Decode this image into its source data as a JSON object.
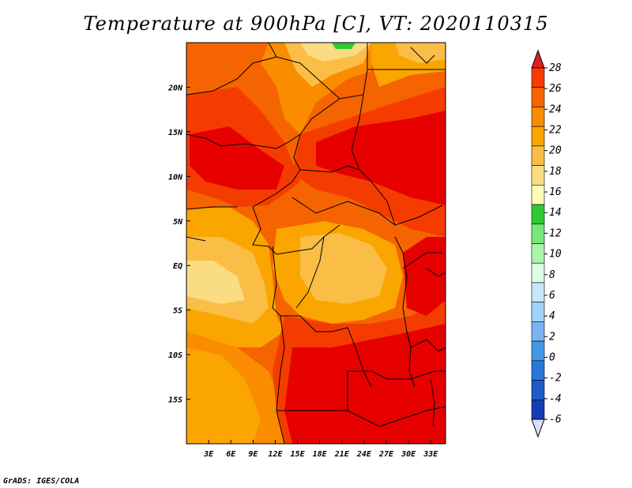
{
  "title": "Temperature at 900hPa [C], VT: 2020110315",
  "credit": "GrADS: IGES/COLA",
  "map": {
    "lon_labels": [
      "3E",
      "6E",
      "9E",
      "12E",
      "15E",
      "18E",
      "21E",
      "24E",
      "27E",
      "30E",
      "33E"
    ],
    "lon_values": [
      3,
      6,
      9,
      12,
      15,
      18,
      21,
      24,
      27,
      30,
      33
    ],
    "lat_labels": [
      "20N",
      "15N",
      "10N",
      "5N",
      "EQ",
      "5S",
      "10S",
      "15S"
    ],
    "lat_values": [
      20,
      15,
      10,
      5,
      0,
      -5,
      -10,
      -15
    ],
    "lon_range": [
      0,
      35
    ],
    "lat_range": [
      -20,
      25
    ]
  },
  "colorbar": {
    "levels": [
      "28",
      "26",
      "24",
      "22",
      "20",
      "18",
      "16",
      "14",
      "12",
      "10",
      "8",
      "6",
      "4",
      "2",
      "0",
      "-2",
      "-4",
      "-6"
    ],
    "colors": [
      "#e60000",
      "#f53c00",
      "#f56400",
      "#fa8c00",
      "#faa500",
      "#fabe46",
      "#fadc82",
      "#fffab4",
      "#32c832",
      "#78e678",
      "#aaf5aa",
      "#dcffe6",
      "#c8e6fa",
      "#a0d2fa",
      "#78b4f0",
      "#4696e6",
      "#2878dc",
      "#1e5ac8",
      "#143cb4",
      "#0a148c"
    ],
    "top_color": "#e11e1e",
    "bottom_color": "#dcdcff"
  }
}
